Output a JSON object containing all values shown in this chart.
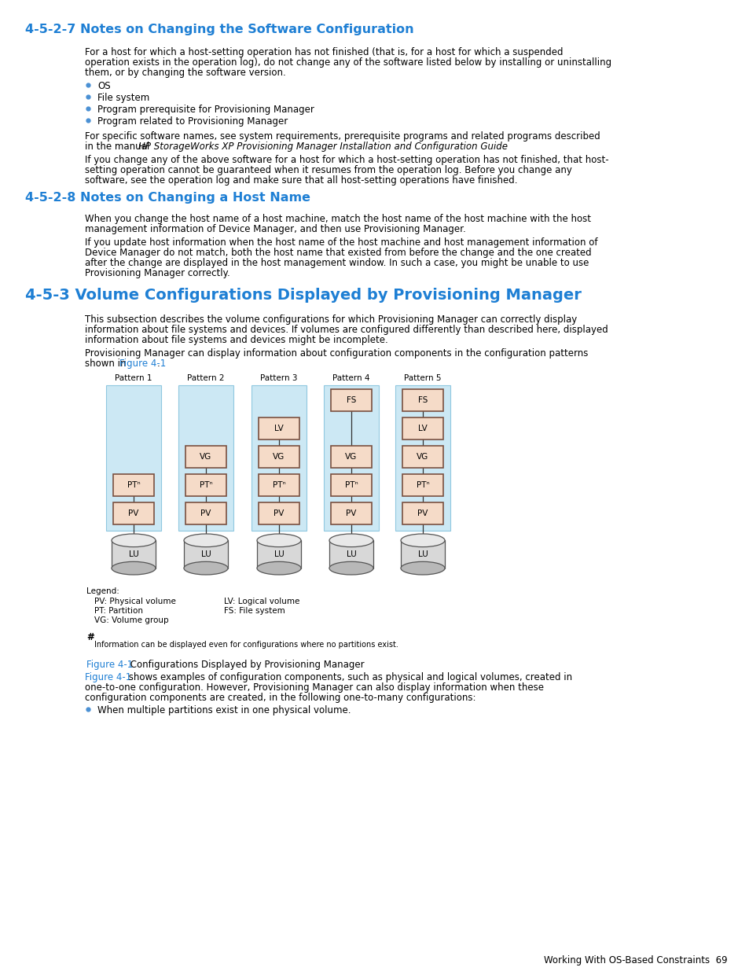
{
  "page_bg": "#ffffff",
  "heading_color": "#1e7fd4",
  "text_color": "#000000",
  "link_color": "#1e7fd4",
  "box_fill": "#f5dbc8",
  "box_edge": "#7a5040",
  "light_blue_bg": "#cce8f4",
  "section1_title": "4-5-2-7 Notes on Changing the Software Configuration",
  "section2_title": "4-5-2-8 Notes on Changing a Host Name",
  "section3_title": "4-5-3 Volume Configurations Displayed by Provisioning Manager",
  "bullets1": [
    "OS",
    "File system",
    "Program prerequisite for Provisioning Manager",
    "Program related to Provisioning Manager"
  ],
  "bullets2": [
    "When multiple partitions exist in one physical volume."
  ],
  "patterns": [
    "Pattern 1",
    "Pattern 2",
    "Pattern 3",
    "Pattern 4",
    "Pattern 5"
  ],
  "footer_text": "Working With OS-Based Constraints  69"
}
